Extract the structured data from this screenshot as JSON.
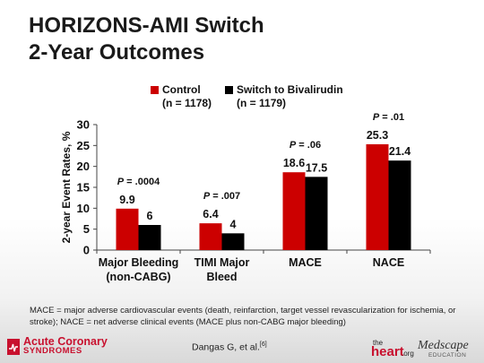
{
  "slide": {
    "title_line1": "HORIZONS-AMI Switch",
    "title_line2": "2-Year Outcomes",
    "footnote": "MACE = major adverse cardiovascular events (death, reinfarction, target vessel revascularization for ischemia, or stroke); NACE = net adverse clinical events (MACE plus non-CABG major bleeding)",
    "citation": "Dangas G, et al.",
    "citation_ref": "[6]",
    "logos": {
      "acute_coronary_line1": "Acute Coronary",
      "acute_coronary_line2": "SYNDROMES",
      "heart_the": "the",
      "heart_main": "heart",
      "heart_org": ".org",
      "medscape_main": "Medscape",
      "medscape_sub": "EDUCATION"
    }
  },
  "chart_data": {
    "type": "bar",
    "ylabel": "2-year  Event Rates, %",
    "ylim": [
      0,
      30
    ],
    "yticks": [
      0,
      5,
      10,
      15,
      20,
      25,
      30
    ],
    "grid": false,
    "legend_position": "top",
    "categories": [
      [
        "Major Bleeding",
        "(non-CABG)"
      ],
      [
        "TIMI Major",
        "Bleed"
      ],
      [
        "MACE"
      ],
      [
        "NACE"
      ]
    ],
    "series": [
      {
        "name": "Control",
        "n_label": "(n = 1178)",
        "color": "#cc0000",
        "values": [
          9.9,
          6.4,
          18.6,
          25.3
        ],
        "labels": [
          "9.9",
          "6.4",
          "18.6",
          "25.3"
        ]
      },
      {
        "name": "Switch to Bivalirudin",
        "n_label": "(n = 1179)",
        "color": "#000000",
        "values": [
          6,
          4,
          17.5,
          21.4
        ],
        "labels": [
          "6",
          "4",
          "17.5",
          "21.4"
        ]
      }
    ],
    "p_values": [
      "P = .0004",
      "P = .007",
      "P = .06",
      "P = .01"
    ]
  }
}
